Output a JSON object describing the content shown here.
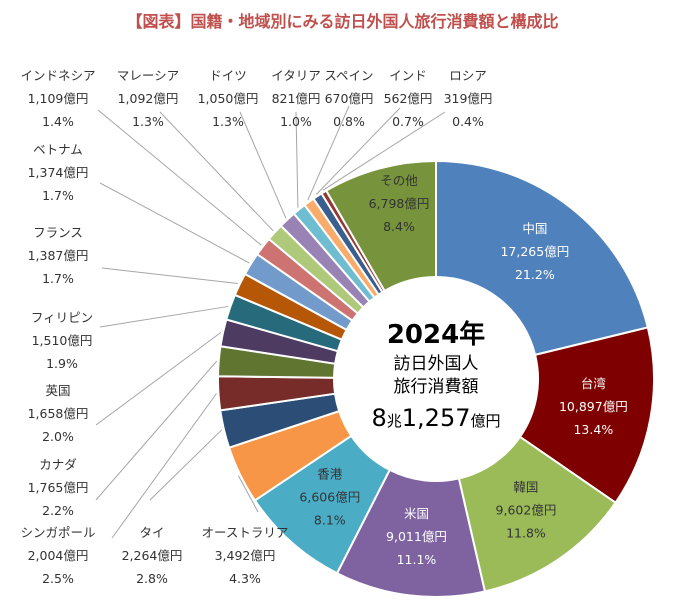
{
  "chart_data": {
    "type": "pie",
    "title": "【図表】国籍・地域別にみる訪日外国人旅行消費額と構成比",
    "center": {
      "year": "2024年",
      "line1": "訪日外国人",
      "line2": "旅行消費額",
      "total_a": "8",
      "total_b": "兆",
      "total_c": "1,257",
      "total_d": "億円"
    },
    "slices": [
      {
        "name": "中国",
        "amount": "17,265億円",
        "pct_label": "21.2%",
        "value": 21.2,
        "color": "#4f81bd",
        "text_color": "#ffffff"
      },
      {
        "name": "台湾",
        "amount": "10,897億円",
        "pct_label": "13.4%",
        "value": 13.4,
        "color": "#7f0000",
        "text_color": "#ffffff"
      },
      {
        "name": "韓国",
        "amount": "9,602億円",
        "pct_label": "11.8%",
        "value": 11.8,
        "color": "#9bbb59",
        "text_color": "#333333"
      },
      {
        "name": "米国",
        "amount": "9,011億円",
        "pct_label": "11.1%",
        "value": 11.1,
        "color": "#7f63a1",
        "text_color": "#ffffff"
      },
      {
        "name": "香港",
        "amount": "6,606億円",
        "pct_label": "8.1%",
        "value": 8.1,
        "color": "#4bacc6",
        "text_color": "#333333"
      },
      {
        "name": "オーストラリア",
        "amount": "3,492億円",
        "pct_label": "4.3%",
        "value": 4.3,
        "color": "#f79646",
        "text_color": "#333333"
      },
      {
        "name": "タイ",
        "amount": "2,264億円",
        "pct_label": "2.8%",
        "value": 2.8,
        "color": "#2c4d75",
        "text_color": "#333333"
      },
      {
        "name": "シンガポール",
        "amount": "2,004億円",
        "pct_label": "2.5%",
        "value": 2.5,
        "color": "#772c2a",
        "text_color": "#333333"
      },
      {
        "name": "カナダ",
        "amount": "1,765億円",
        "pct_label": "2.2%",
        "value": 2.2,
        "color": "#5f7530",
        "text_color": "#333333"
      },
      {
        "name": "英国",
        "amount": "1,658億円",
        "pct_label": "2.0%",
        "value": 2.0,
        "color": "#4d3b62",
        "text_color": "#333333"
      },
      {
        "name": "フィリピン",
        "amount": "1,510億円",
        "pct_label": "1.9%",
        "value": 1.9,
        "color": "#276a7c",
        "text_color": "#333333"
      },
      {
        "name": "フランス",
        "amount": "1,387億円",
        "pct_label": "1.7%",
        "value": 1.7,
        "color": "#b65708",
        "text_color": "#333333"
      },
      {
        "name": "ベトナム",
        "amount": "1,374億円",
        "pct_label": "1.7%",
        "value": 1.7,
        "color": "#729aca",
        "text_color": "#333333"
      },
      {
        "name": "インドネシア",
        "amount": "1,109億円",
        "pct_label": "1.4%",
        "value": 1.4,
        "color": "#cd7371",
        "text_color": "#333333"
      },
      {
        "name": "マレーシア",
        "amount": "1,092億円",
        "pct_label": "1.3%",
        "value": 1.3,
        "color": "#afc97a",
        "text_color": "#333333"
      },
      {
        "name": "ドイツ",
        "amount": "1,050億円",
        "pct_label": "1.3%",
        "value": 1.3,
        "color": "#9983b5",
        "text_color": "#333333"
      },
      {
        "name": "イタリア",
        "amount": "821億円",
        "pct_label": "1.0%",
        "value": 1.0,
        "color": "#6fbdd1",
        "text_color": "#333333"
      },
      {
        "name": "スペイン",
        "amount": "670億円",
        "pct_label": "0.8%",
        "value": 0.8,
        "color": "#f9ab6b",
        "text_color": "#333333"
      },
      {
        "name": "インド",
        "amount": "562億円",
        "pct_label": "0.7%",
        "value": 0.7,
        "color": "#3a5f8f",
        "text_color": "#333333"
      },
      {
        "name": "ロシア",
        "amount": "319億円",
        "pct_label": "0.4%",
        "value": 0.4,
        "color": "#953735",
        "text_color": "#333333"
      },
      {
        "name": "その他",
        "amount": "6,798億円",
        "pct_label": "8.4%",
        "value": 8.4,
        "color": "#77933c",
        "text_color": "#333333"
      }
    ]
  }
}
